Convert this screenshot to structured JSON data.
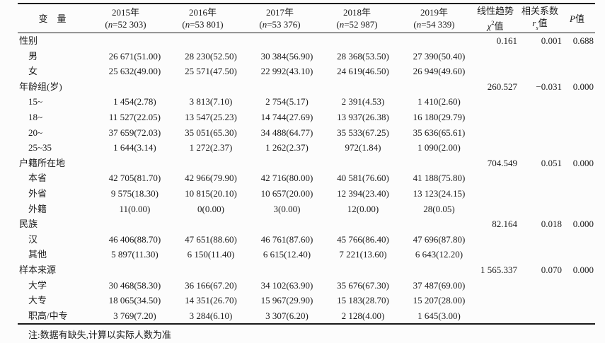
{
  "page": {
    "background": "#fcfcfc",
    "text_color": "#1c1c1c",
    "rule_color": "#1a1a1a"
  },
  "table": {
    "header": {
      "variable": "变　量",
      "years": [
        {
          "year": "2015年",
          "n": "52 303"
        },
        {
          "year": "2016年",
          "n": "53 801"
        },
        {
          "year": "2017年",
          "n": "53 376"
        },
        {
          "year": "2018年",
          "n": "52 987"
        },
        {
          "year": "2019年",
          "n": "54 339"
        }
      ],
      "trend": {
        "line1": "线性趋势",
        "symbol": "χ",
        "sup": "2",
        "suffix": "值"
      },
      "corr": {
        "line1": "相关系数",
        "symbol": "r",
        "sub": "s",
        "suffix": "值"
      },
      "p": {
        "symbol": "P",
        "suffix": "值"
      }
    },
    "symbols": {
      "open": "(",
      "n": "n",
      "eq": "=",
      "close": ")"
    },
    "rows": [
      {
        "type": "cat",
        "label": "性别",
        "values": [
          "",
          "",
          "",
          "",
          ""
        ],
        "chi": "0.161",
        "r": "0.001",
        "p": "0.688"
      },
      {
        "type": "item",
        "label": "男",
        "values": [
          "26 671(51.00)",
          "28 230(52.50)",
          "30 384(56.90)",
          "28 368(53.50)",
          "27 390(50.40)"
        ],
        "chi": "",
        "r": "",
        "p": ""
      },
      {
        "type": "item",
        "label": "女",
        "values": [
          "25 632(49.00)",
          "25 571(47.50)",
          "22 992(43.10)",
          "24 619(46.50)",
          "26 949(49.60)"
        ],
        "chi": "",
        "r": "",
        "p": ""
      },
      {
        "type": "cat",
        "label": "年龄组(岁)",
        "values": [
          "",
          "",
          "",
          "",
          ""
        ],
        "chi": "260.527",
        "r": "−0.031",
        "p": "0.000"
      },
      {
        "type": "item",
        "label": "15~",
        "values": [
          "1 454(2.78)",
          "3 813(7.10)",
          "2 754(5.17)",
          "2 391(4.53)",
          "1 410(2.60)"
        ],
        "chi": "",
        "r": "",
        "p": ""
      },
      {
        "type": "item",
        "label": "18~",
        "values": [
          "11 527(22.05)",
          "13 547(25.23)",
          "14 744(27.69)",
          "13 937(26.38)",
          "16 180(29.79)"
        ],
        "chi": "",
        "r": "",
        "p": ""
      },
      {
        "type": "item",
        "label": "20~",
        "values": [
          "37 659(72.03)",
          "35 051(65.30)",
          "34 488(64.77)",
          "35 533(67.25)",
          "35 636(65.61)"
        ],
        "chi": "",
        "r": "",
        "p": ""
      },
      {
        "type": "item",
        "label": "25~35",
        "values": [
          "1 644(3.14)",
          "1 272(2.37)",
          "1 262(2.37)",
          "972(1.84)",
          "1 090(2.00)"
        ],
        "chi": "",
        "r": "",
        "p": ""
      },
      {
        "type": "cat",
        "label": "户籍所在地",
        "values": [
          "",
          "",
          "",
          "",
          ""
        ],
        "chi": "704.549",
        "r": "0.051",
        "p": "0.000"
      },
      {
        "type": "item",
        "label": "本省",
        "values": [
          "42 705(81.70)",
          "42 966(79.90)",
          "42 716(80.00)",
          "40 581(76.60)",
          "41 188(75.80)"
        ],
        "chi": "",
        "r": "",
        "p": ""
      },
      {
        "type": "item",
        "label": "外省",
        "values": [
          "9 575(18.30)",
          "10 815(20.10)",
          "10 657(20.00)",
          "12 394(23.40)",
          "13 123(24.15)"
        ],
        "chi": "",
        "r": "",
        "p": ""
      },
      {
        "type": "item",
        "label": "外籍",
        "values": [
          "11(0.00)",
          "0(0.00)",
          "3(0.00)",
          "12(0.00)",
          "28(0.05)"
        ],
        "chi": "",
        "r": "",
        "p": ""
      },
      {
        "type": "cat",
        "label": "民族",
        "values": [
          "",
          "",
          "",
          "",
          ""
        ],
        "chi": "82.164",
        "r": "0.018",
        "p": "0.000"
      },
      {
        "type": "item",
        "label": "汉",
        "values": [
          "46 406(88.70)",
          "47 651(88.60)",
          "46 761(87.60)",
          "45 766(86.40)",
          "47 696(87.80)"
        ],
        "chi": "",
        "r": "",
        "p": ""
      },
      {
        "type": "item",
        "label": "其他",
        "values": [
          "5 897(11.30)",
          "6 150(11.40)",
          "6 615(12.40)",
          "7 221(13.60)",
          "6 643(12.20)"
        ],
        "chi": "",
        "r": "",
        "p": ""
      },
      {
        "type": "cat",
        "label": "样本来源",
        "values": [
          "",
          "",
          "",
          "",
          ""
        ],
        "chi": "1 565.337",
        "r": "0.070",
        "p": "0.000"
      },
      {
        "type": "item",
        "label": "大学",
        "values": [
          "30 468(58.30)",
          "36 166(67.20)",
          "34 102(63.90)",
          "35 676(67.30)",
          "37 487(69.00)"
        ],
        "chi": "",
        "r": "",
        "p": ""
      },
      {
        "type": "item",
        "label": "大专",
        "values": [
          "18 065(34.50)",
          "14 351(26.70)",
          "15 967(29.90)",
          "15 183(28.70)",
          "15 207(28.00)"
        ],
        "chi": "",
        "r": "",
        "p": ""
      },
      {
        "type": "item",
        "label": "职高/中专",
        "values": [
          "3 769(7.20)",
          "3 284(6.10)",
          "3 307(6.20)",
          "2 128(4.00)",
          "1 645(3.00)"
        ],
        "chi": "",
        "r": "",
        "p": ""
      }
    ],
    "note": "注:数据有缺失,计算以实际人数为准"
  }
}
